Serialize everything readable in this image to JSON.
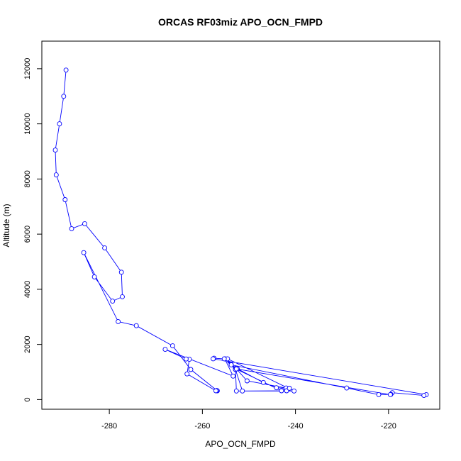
{
  "chart_data": {
    "type": "line",
    "title": "ORCAS RF03miz APO_OCN_FMPD",
    "xlabel": "APO_OCN_FMPD",
    "ylabel": "Altitude (m)",
    "xlim": [
      -294.5,
      -209
    ],
    "ylim": [
      -350,
      13000
    ],
    "xticks": [
      -280,
      -260,
      -240,
      -220
    ],
    "yticks": [
      0,
      2000,
      4000,
      6000,
      8000,
      10000,
      12000
    ],
    "grid": false,
    "line_color": "#0000ff",
    "marker": "open-circle",
    "series": [
      {
        "x": [
          -289.3,
          -289.8,
          -290.7,
          -291.6,
          -291.4,
          -289.5,
          -288.1,
          -285.3,
          -281.0,
          -277.4,
          -277.2,
          -279.3,
          -283.2,
          -285.5,
          -278.1,
          -274.2,
          -266.4,
          -262.5,
          -256.8,
          -256.9,
          -257.1,
          -263.3,
          -262.8,
          -263.5,
          -268.0,
          -253.4,
          -255.2,
          -252.8,
          -250.4,
          -242.0,
          -241.9,
          -252.7,
          -252.9,
          -243.0,
          -241.3,
          -244.1,
          -246.9,
          -252.5,
          -253.8,
          -255.0,
          -257.5,
          -257.7,
          -211.9,
          -212.4,
          -219.2,
          -219.5,
          -222.1,
          -229.0,
          -253.8,
          -254.6,
          -240.3,
          -251.4,
          -252.9,
          -255.3,
          -252.7,
          -219.6
        ],
        "y": [
          11950,
          11000,
          10000,
          9050,
          8150,
          7250,
          6200,
          6380,
          5500,
          4620,
          3730,
          3570,
          4450,
          5330,
          2830,
          2680,
          1950,
          1090,
          320,
          330,
          320,
          930,
          1460,
          1470,
          1820,
          850,
          1480,
          1130,
          680,
          420,
          320,
          310,
          1120,
          320,
          410,
          430,
          620,
          1120,
          1270,
          1470,
          1500,
          1480,
          180,
          150,
          250,
          190,
          180,
          420,
          1260,
          1480,
          310,
          310,
          1090,
          1480,
          1110,
          180
        ]
      }
    ]
  }
}
